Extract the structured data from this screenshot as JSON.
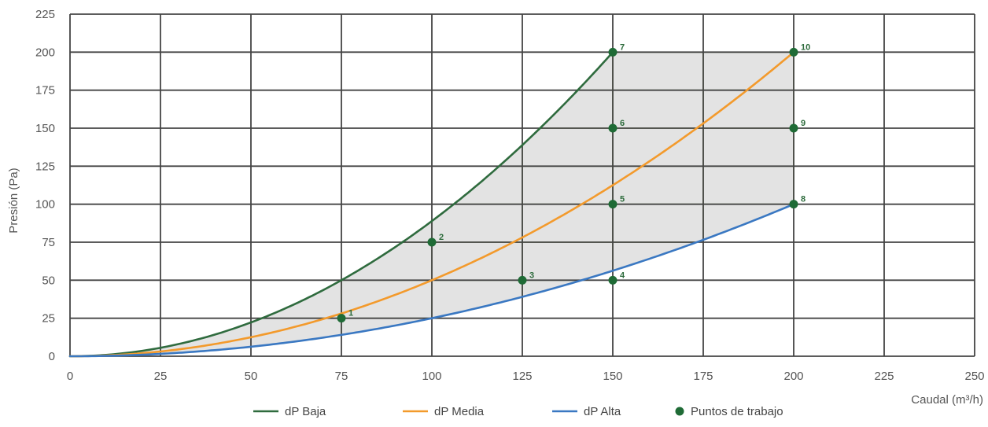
{
  "chart_data": {
    "type": "line",
    "title": "",
    "xlabel": "Caudal (m³/h)",
    "ylabel": "Presión (Pa)",
    "xlim": [
      0,
      250
    ],
    "ylim": [
      0,
      225
    ],
    "xticks": [
      0,
      25,
      50,
      75,
      100,
      125,
      150,
      175,
      200,
      225,
      250
    ],
    "yticks": [
      0,
      25,
      50,
      75,
      100,
      125,
      150,
      175,
      200,
      225
    ],
    "grid": true,
    "legend_position": "bottom",
    "colors": {
      "baja": "#2f6b3e",
      "media": "#f39a2c",
      "alta": "#3a78c2",
      "points": "#1f6b36",
      "fill": "#e3e3e3",
      "work_grid": "#9cbf6f",
      "grid": "#444444"
    },
    "series": [
      {
        "name": "dP Baja",
        "key": "baja",
        "x": [
          0,
          25,
          50,
          75,
          100,
          125,
          150
        ],
        "y": [
          0,
          5.6,
          22.2,
          50,
          88.9,
          138.9,
          200
        ]
      },
      {
        "name": "dP Media",
        "key": "media",
        "x": [
          0,
          25,
          50,
          75,
          100,
          125,
          150,
          175,
          200
        ],
        "y": [
          0,
          3.1,
          12.5,
          28.1,
          50,
          78.1,
          112.5,
          153.1,
          200
        ]
      },
      {
        "name": "dP Alta",
        "key": "alta",
        "x": [
          0,
          25,
          50,
          75,
          100,
          125,
          150,
          175,
          200
        ],
        "y": [
          0,
          1.6,
          6.3,
          14.1,
          25,
          39.1,
          56.3,
          76.6,
          100
        ]
      }
    ],
    "points_name": "Puntos de trabajo",
    "points": [
      {
        "label": "1",
        "x": 75,
        "y": 25
      },
      {
        "label": "2",
        "x": 100,
        "y": 75
      },
      {
        "label": "3",
        "x": 125,
        "y": 50
      },
      {
        "label": "4",
        "x": 150,
        "y": 50
      },
      {
        "label": "5",
        "x": 150,
        "y": 100
      },
      {
        "label": "6",
        "x": 150,
        "y": 150
      },
      {
        "label": "7",
        "x": 150,
        "y": 200
      },
      {
        "label": "8",
        "x": 200,
        "y": 100
      },
      {
        "label": "9",
        "x": 200,
        "y": 150
      },
      {
        "label": "10",
        "x": 200,
        "y": 200
      }
    ]
  }
}
